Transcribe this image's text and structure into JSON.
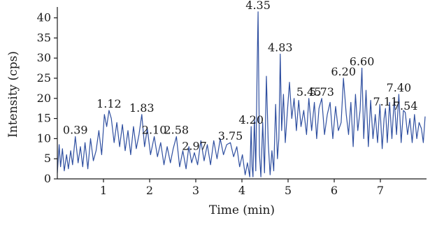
{
  "chart_data": {
    "type": "line",
    "xlabel": "Time (min)",
    "ylabel": "Intensity (cps)",
    "xlim": [
      0,
      8
    ],
    "ylim": [
      0,
      42
    ],
    "x_ticks": [
      1,
      2,
      3,
      4,
      5,
      6,
      7
    ],
    "y_ticks": [
      0,
      5,
      10,
      15,
      20,
      25,
      30,
      35,
      40
    ],
    "grid": false,
    "line_color": "#2f4fa0",
    "peak_labels": [
      {
        "text": "0.39",
        "x": 0.39,
        "y": 10.5
      },
      {
        "text": "1.12",
        "x": 1.12,
        "y": 17.0
      },
      {
        "text": "1.83",
        "x": 1.83,
        "y": 16.0
      },
      {
        "text": "2.10",
        "x": 2.1,
        "y": 10.5
      },
      {
        "text": "2.58",
        "x": 2.58,
        "y": 10.5
      },
      {
        "text": "2.97",
        "x": 2.97,
        "y": 6.5
      },
      {
        "text": "3.75",
        "x": 3.75,
        "y": 9.0
      },
      {
        "text": "4.20",
        "x": 4.2,
        "y": 13.0
      },
      {
        "text": "4.35",
        "x": 4.35,
        "y": 41.5
      },
      {
        "text": "4.83",
        "x": 4.83,
        "y": 31.0
      },
      {
        "text": "5.45",
        "x": 5.45,
        "y": 20.0
      },
      {
        "text": "5.73",
        "x": 5.73,
        "y": 20.0
      },
      {
        "text": "6.20",
        "x": 6.2,
        "y": 25.0
      },
      {
        "text": "6.60",
        "x": 6.6,
        "y": 27.5
      },
      {
        "text": "7.11",
        "x": 7.11,
        "y": 17.5
      },
      {
        "text": "7.40",
        "x": 7.4,
        "y": 21.0
      },
      {
        "text": "7.54",
        "x": 7.54,
        "y": 16.5
      }
    ],
    "series": [
      {
        "x": [
          0.0,
          0.04,
          0.07,
          0.11,
          0.15,
          0.2,
          0.24,
          0.29,
          0.33,
          0.39,
          0.45,
          0.5,
          0.55,
          0.6,
          0.66,
          0.72,
          0.78,
          0.84,
          0.9,
          0.96,
          1.02,
          1.07,
          1.12,
          1.17,
          1.23,
          1.29,
          1.35,
          1.41,
          1.47,
          1.53,
          1.59,
          1.65,
          1.71,
          1.77,
          1.83,
          1.89,
          1.95,
          2.02,
          2.1,
          2.17,
          2.24,
          2.31,
          2.38,
          2.45,
          2.51,
          2.58,
          2.65,
          2.72,
          2.79,
          2.85,
          2.91,
          2.97,
          3.04,
          3.11,
          3.18,
          3.25,
          3.32,
          3.39,
          3.46,
          3.53,
          3.6,
          3.67,
          3.75,
          3.82,
          3.89,
          3.95,
          4.01,
          4.07,
          4.12,
          4.17,
          4.2,
          4.22,
          4.24,
          4.27,
          4.3,
          4.33,
          4.35,
          4.38,
          4.41,
          4.45,
          4.49,
          4.53,
          4.57,
          4.61,
          4.65,
          4.69,
          4.73,
          4.77,
          4.8,
          4.83,
          4.86,
          4.9,
          4.94,
          4.98,
          5.03,
          5.08,
          5.13,
          5.18,
          5.23,
          5.28,
          5.34,
          5.4,
          5.45,
          5.51,
          5.57,
          5.62,
          5.67,
          5.73,
          5.79,
          5.85,
          5.91,
          5.97,
          6.03,
          6.09,
          6.15,
          6.2,
          6.26,
          6.31,
          6.36,
          6.41,
          6.46,
          6.51,
          6.56,
          6.6,
          6.64,
          6.69,
          6.74,
          6.79,
          6.84,
          6.89,
          6.94,
          6.99,
          7.04,
          7.08,
          7.11,
          7.15,
          7.2,
          7.25,
          7.3,
          7.35,
          7.4,
          7.45,
          7.5,
          7.54,
          7.59,
          7.64,
          7.69,
          7.74,
          7.79,
          7.84,
          7.89,
          7.93,
          7.97
        ],
        "y": [
          1.5,
          8.5,
          3.0,
          7.5,
          2.0,
          6.0,
          2.5,
          7.0,
          3.5,
          10.5,
          4.0,
          8.0,
          3.0,
          9.0,
          2.5,
          10.0,
          4.5,
          7.0,
          12.0,
          6.0,
          16.0,
          13.0,
          17.0,
          15.0,
          9.0,
          14.0,
          8.0,
          13.5,
          7.0,
          12.0,
          6.0,
          13.0,
          7.5,
          11.0,
          16.0,
          8.0,
          12.5,
          6.0,
          10.5,
          5.5,
          9.0,
          3.5,
          8.0,
          4.0,
          7.5,
          10.5,
          3.0,
          7.0,
          2.5,
          8.0,
          4.0,
          6.5,
          3.5,
          9.5,
          4.5,
          8.5,
          3.5,
          9.5,
          5.0,
          10.0,
          6.0,
          8.5,
          9.0,
          5.5,
          8.0,
          3.0,
          6.0,
          1.0,
          4.0,
          0.5,
          13.0,
          3.0,
          0.5,
          15.0,
          2.0,
          28.0,
          41.5,
          6.0,
          0.5,
          14.0,
          1.5,
          25.5,
          9.0,
          1.0,
          7.0,
          2.0,
          18.5,
          5.0,
          10.0,
          31.0,
          12.0,
          21.0,
          9.0,
          16.0,
          24.0,
          15.0,
          20.0,
          12.0,
          19.5,
          13.0,
          17.0,
          11.0,
          20.0,
          12.0,
          19.0,
          10.0,
          17.5,
          20.0,
          11.0,
          16.0,
          19.0,
          10.0,
          18.0,
          12.0,
          14.0,
          25.0,
          16.0,
          11.0,
          19.0,
          8.0,
          21.0,
          12.0,
          17.0,
          27.5,
          10.0,
          22.0,
          8.0,
          19.5,
          10.0,
          16.0,
          9.0,
          18.5,
          7.5,
          15.0,
          17.5,
          9.0,
          19.0,
          10.0,
          20.0,
          11.0,
          21.0,
          9.0,
          17.0,
          16.5,
          11.0,
          15.0,
          9.0,
          16.0,
          10.0,
          14.0,
          12.5,
          9.0,
          15.5
        ]
      }
    ]
  }
}
